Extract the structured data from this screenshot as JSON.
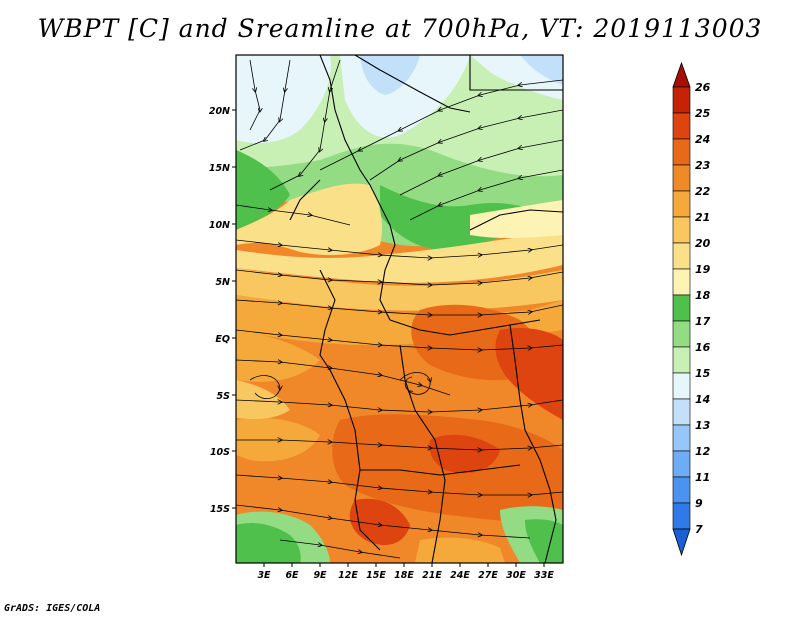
{
  "title": "WBPT [C] and Sreamline at 700hPa, VT: 2019113003",
  "credit": "GrADS: IGES/COLA",
  "map": {
    "lat_ticks": [
      "20N",
      "15N",
      "10N",
      "5N",
      "EQ",
      "5S",
      "10S",
      "15S"
    ],
    "lon_ticks": [
      "3E",
      "6E",
      "9E",
      "12E",
      "15E",
      "18E",
      "21E",
      "24E",
      "27E",
      "30E",
      "33E"
    ]
  },
  "colorbar": {
    "labels": [
      "7",
      "9",
      "11",
      "12",
      "13",
      "14",
      "15",
      "16",
      "17",
      "18",
      "19",
      "20",
      "21",
      "22",
      "23",
      "24",
      "25",
      "26"
    ],
    "colors": [
      "#1a5fd6",
      "#2f7ae8",
      "#4c93f0",
      "#6eacf5",
      "#97c6f8",
      "#c3e0fb",
      "#e6f6fb",
      "#c8f0b4",
      "#93dc84",
      "#4fc04b",
      "#fdf3b4",
      "#fbe08a",
      "#f8c760",
      "#f5a93a",
      "#ef8a26",
      "#e86a18",
      "#dd4410",
      "#c52208",
      "#a50f05"
    ]
  }
}
